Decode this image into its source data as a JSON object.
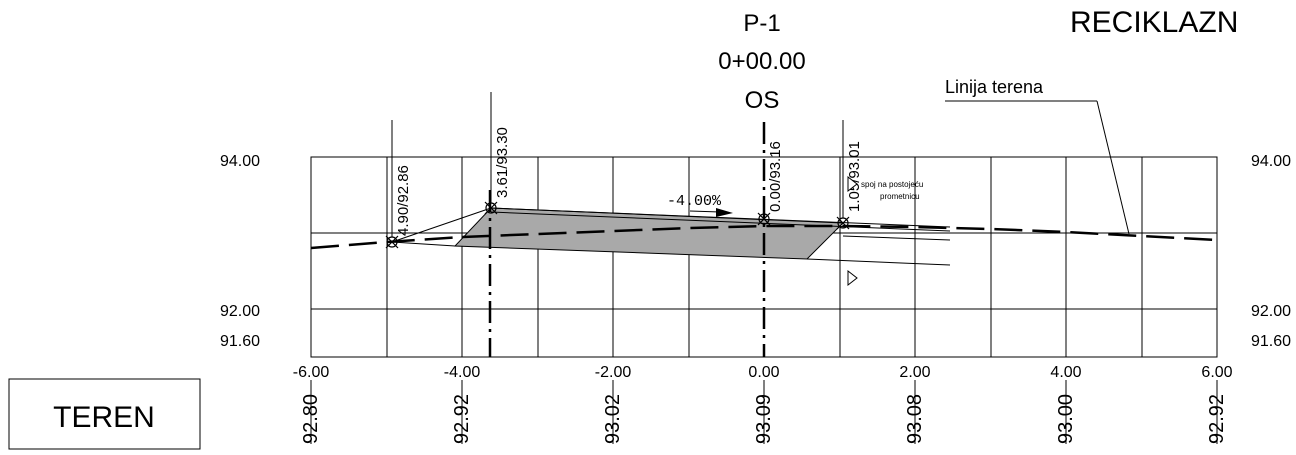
{
  "header": {
    "profile_id": "P-1",
    "station": "0+00.00",
    "axis": "OS",
    "title_partial": "RECIKLAZN"
  },
  "callouts": {
    "terrain_line": "Linija terena",
    "junction_line1": "spoj na postojeću",
    "junction_line2": "prometnicu",
    "slope": "-4.00%"
  },
  "elevation_labels": {
    "left": [
      "94.00",
      "92.00",
      "91.60"
    ],
    "right": [
      "94.00",
      "92.00",
      "91.60"
    ]
  },
  "offset_labels": [
    "-6.00",
    "-4.00",
    "-2.00",
    "0.00",
    "2.00",
    "4.00",
    "6.00"
  ],
  "terrain_values": [
    "92.80",
    "92.92",
    "93.02",
    "93.09",
    "93.08",
    "93.00",
    "92.92"
  ],
  "point_labels": [
    "4.90/92.86",
    "3.61/93.30",
    "0.00/93.16",
    "1.05/93.01"
  ],
  "row_label": "TEREN",
  "colors": {
    "fill": "#a9a9a9",
    "line": "#000000"
  }
}
